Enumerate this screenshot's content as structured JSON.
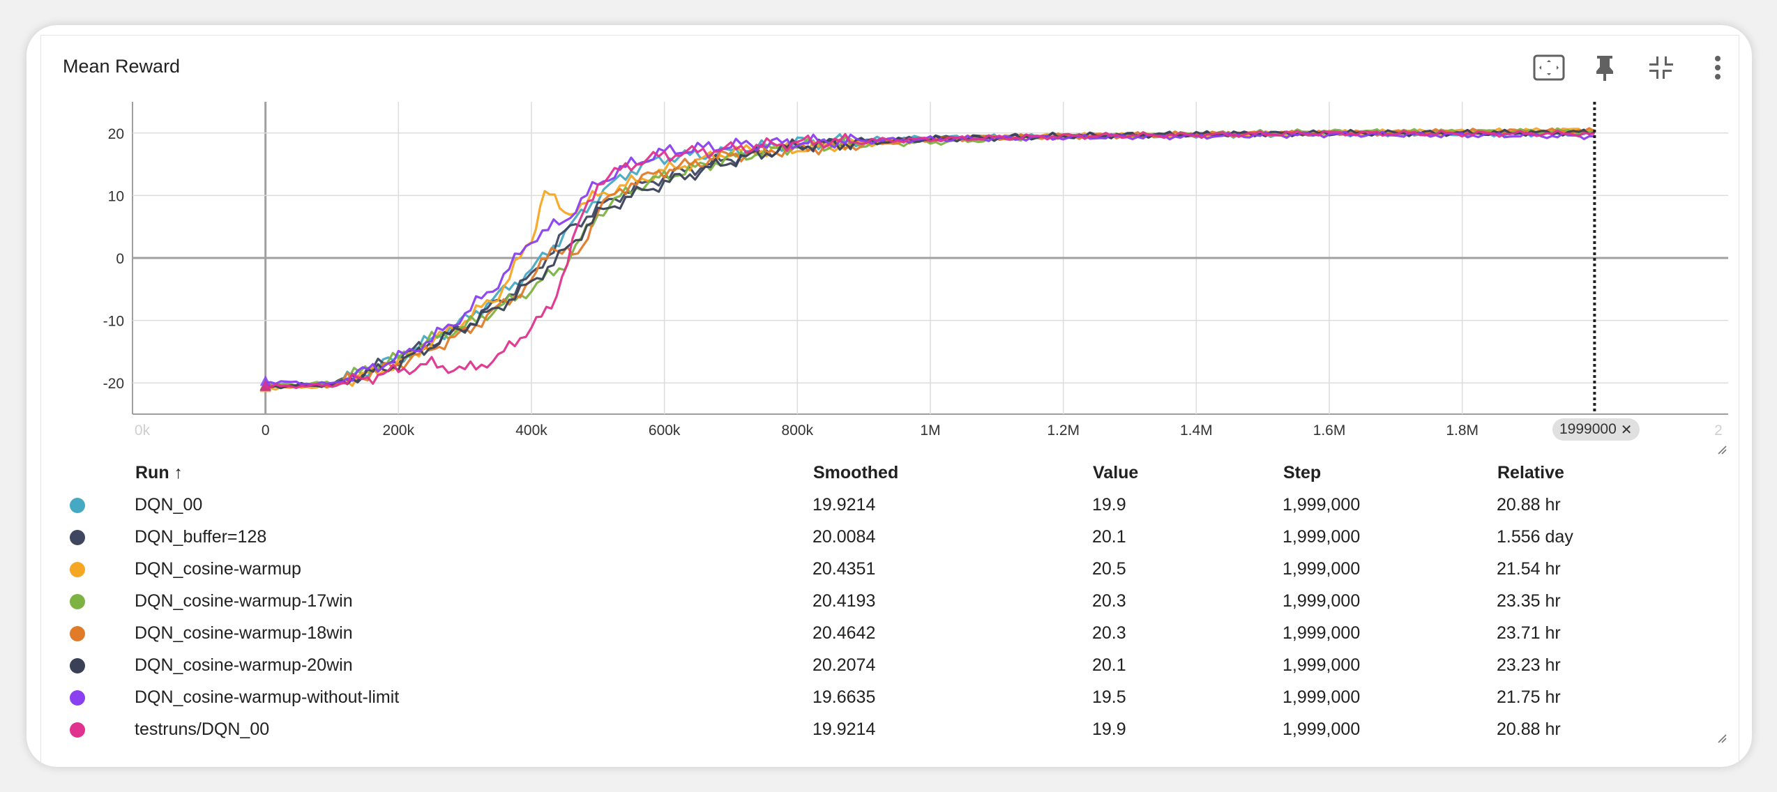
{
  "card": {
    "title": "Mean Reward"
  },
  "toolbar": {
    "fit_icon": "fit-to-domain-icon",
    "pin_icon": "pin-icon",
    "collapse_icon": "collapse-icon",
    "more_icon": "more-vert-icon"
  },
  "hover_step_label": "1999000",
  "table": {
    "headers": {
      "run": "Run ↑",
      "smoothed": "Smoothed",
      "value": "Value",
      "step": "Step",
      "relative": "Relative"
    },
    "rows": [
      {
        "run": "DQN_00",
        "smoothed": "19.9214",
        "value": "19.9",
        "step": "1,999,000",
        "relative": "20.88 hr",
        "color": "#46a9c3"
      },
      {
        "run": "DQN_buffer=128",
        "smoothed": "20.0084",
        "value": "20.1",
        "step": "1,999,000",
        "relative": "1.556 day",
        "color": "#3e4660"
      },
      {
        "run": "DQN_cosine-warmup",
        "smoothed": "20.4351",
        "value": "20.5",
        "step": "1,999,000",
        "relative": "21.54 hr",
        "color": "#f5a623"
      },
      {
        "run": "DQN_cosine-warmup-17win",
        "smoothed": "20.4193",
        "value": "20.3",
        "step": "1,999,000",
        "relative": "23.35 hr",
        "color": "#7cb342"
      },
      {
        "run": "DQN_cosine-warmup-18win",
        "smoothed": "20.4642",
        "value": "20.3",
        "step": "1,999,000",
        "relative": "23.71 hr",
        "color": "#e07b2a"
      },
      {
        "run": "DQN_cosine-warmup-20win",
        "smoothed": "20.2074",
        "value": "20.1",
        "step": "1,999,000",
        "relative": "23.23 hr",
        "color": "#3a4157"
      },
      {
        "run": "DQN_cosine-warmup-without-limit",
        "smoothed": "19.6635",
        "value": "19.5",
        "step": "1,999,000",
        "relative": "21.75 hr",
        "color": "#8a3ff0"
      },
      {
        "run": "testruns/DQN_00",
        "smoothed": "19.9214",
        "value": "19.9",
        "step": "1,999,000",
        "relative": "20.88 hr",
        "color": "#e0338f"
      }
    ]
  },
  "chart_data": {
    "type": "line",
    "title": "Mean Reward",
    "xlabel": "",
    "ylabel": "",
    "xlim": [
      -200000,
      2200000
    ],
    "ylim": [
      -25,
      25
    ],
    "x_ticks": [
      0,
      200000,
      400000,
      600000,
      800000,
      1000000,
      1200000,
      1400000,
      1600000,
      1800000
    ],
    "x_tick_labels": [
      "0",
      "200k",
      "400k",
      "600k",
      "800k",
      "1M",
      "1.2M",
      "1.4M",
      "1.6M",
      "1.8M"
    ],
    "x_edge_labels": [
      "0k",
      "2"
    ],
    "y_ticks": [
      20,
      10,
      0,
      -10,
      -20
    ],
    "y_tick_labels": [
      "20",
      "10",
      "0",
      "-10",
      "-20"
    ],
    "hover_x": 1999000,
    "grid": true,
    "series": [
      {
        "name": "DQN_00",
        "color": "#46a9c3",
        "x": [
          0,
          100000,
          200000,
          300000,
          350000,
          400000,
          450000,
          500000,
          550000,
          600000,
          700000,
          800000,
          1000000,
          1200000,
          1400000,
          1600000,
          1800000,
          1999000
        ],
        "y": [
          -20.5,
          -20.3,
          -16,
          -10,
          -6,
          -2,
          4,
          10,
          14,
          16,
          17,
          18.5,
          19.2,
          19.5,
          19.7,
          19.9,
          19.9,
          19.9
        ]
      },
      {
        "name": "DQN_buffer=128",
        "color": "#3e4660",
        "x": [
          0,
          100000,
          200000,
          300000,
          350000,
          400000,
          450000,
          500000,
          550000,
          600000,
          700000,
          800000,
          1000000,
          1200000,
          1400000,
          1600000,
          1800000,
          1999000
        ],
        "y": [
          -20.5,
          -20.2,
          -16,
          -11,
          -7,
          -3,
          4,
          8,
          11,
          13,
          16,
          18,
          19.2,
          19.6,
          19.8,
          20,
          20,
          20.1
        ]
      },
      {
        "name": "DQN_cosine-warmup",
        "color": "#f5a623",
        "x": [
          0,
          100000,
          200000,
          300000,
          350000,
          400000,
          420000,
          450000,
          500000,
          550000,
          600000,
          700000,
          800000,
          1000000,
          1200000,
          1400000,
          1600000,
          1800000,
          1999000
        ],
        "y": [
          -20.8,
          -20.5,
          -17,
          -10,
          -6,
          3,
          11,
          7,
          10,
          12,
          14,
          17,
          17.5,
          19,
          19.5,
          19.7,
          20,
          20.2,
          20.5
        ]
      },
      {
        "name": "DQN_cosine-warmup-17win",
        "color": "#7cb342",
        "x": [
          0,
          100000,
          150000,
          200000,
          250000,
          300000,
          350000,
          400000,
          450000,
          500000,
          550000,
          600000,
          700000,
          800000,
          1000000,
          1200000,
          1400000,
          1600000,
          1800000,
          1999000
        ],
        "y": [
          -20.4,
          -20.0,
          -18,
          -16,
          -13,
          -11,
          -8,
          -5,
          -1,
          7,
          11,
          13,
          16,
          18,
          18.5,
          19.5,
          19.8,
          20.2,
          20.2,
          20.3
        ]
      },
      {
        "name": "DQN_cosine-warmup-18win",
        "color": "#e07b2a",
        "x": [
          0,
          100000,
          200000,
          300000,
          350000,
          400000,
          430000,
          470000,
          500000,
          550000,
          600000,
          700000,
          800000,
          1000000,
          1200000,
          1400000,
          1600000,
          1800000,
          1999000
        ],
        "y": [
          -20.6,
          -20.4,
          -17,
          -12,
          -8,
          -4,
          2,
          0,
          8,
          12,
          14,
          16.5,
          17.5,
          19,
          19.5,
          19.8,
          20,
          20.2,
          20.3
        ]
      },
      {
        "name": "DQN_cosine-warmup-20win",
        "color": "#3a4157",
        "x": [
          0,
          100000,
          200000,
          300000,
          350000,
          400000,
          450000,
          500000,
          550000,
          600000,
          700000,
          800000,
          1000000,
          1200000,
          1400000,
          1600000,
          1800000,
          1999000
        ],
        "y": [
          -20.6,
          -20.3,
          -17,
          -11,
          -8,
          -4,
          1,
          7,
          10,
          12,
          15.5,
          18,
          19,
          19.5,
          19.8,
          20,
          20,
          20.1
        ]
      },
      {
        "name": "DQN_cosine-warmup-without-limit",
        "color": "#8a3ff0",
        "x": [
          0,
          100000,
          200000,
          250000,
          300000,
          350000,
          400000,
          450000,
          500000,
          550000,
          600000,
          650000,
          700000,
          800000,
          1000000,
          1200000,
          1400000,
          1600000,
          1800000,
          1999000
        ],
        "y": [
          -19.8,
          -20.2,
          -16,
          -13,
          -9,
          -4,
          3,
          6,
          12,
          15,
          17,
          17.5,
          18,
          18.5,
          19,
          19.3,
          19.5,
          19.8,
          19.7,
          19.5
        ]
      },
      {
        "name": "testruns/DQN_00",
        "color": "#e0338f",
        "x": [
          0,
          100000,
          200000,
          250000,
          300000,
          350000,
          400000,
          430000,
          470000,
          500000,
          550000,
          600000,
          650000,
          700000,
          800000,
          1000000,
          1200000,
          1400000,
          1600000,
          1800000,
          1999000
        ],
        "y": [
          -20.6,
          -20.4,
          -18,
          -17,
          -18,
          -16,
          -11,
          -8,
          5,
          12,
          15,
          16.5,
          17,
          17.5,
          18.5,
          19,
          19.5,
          19.7,
          20,
          19.9,
          19.9
        ]
      }
    ]
  }
}
